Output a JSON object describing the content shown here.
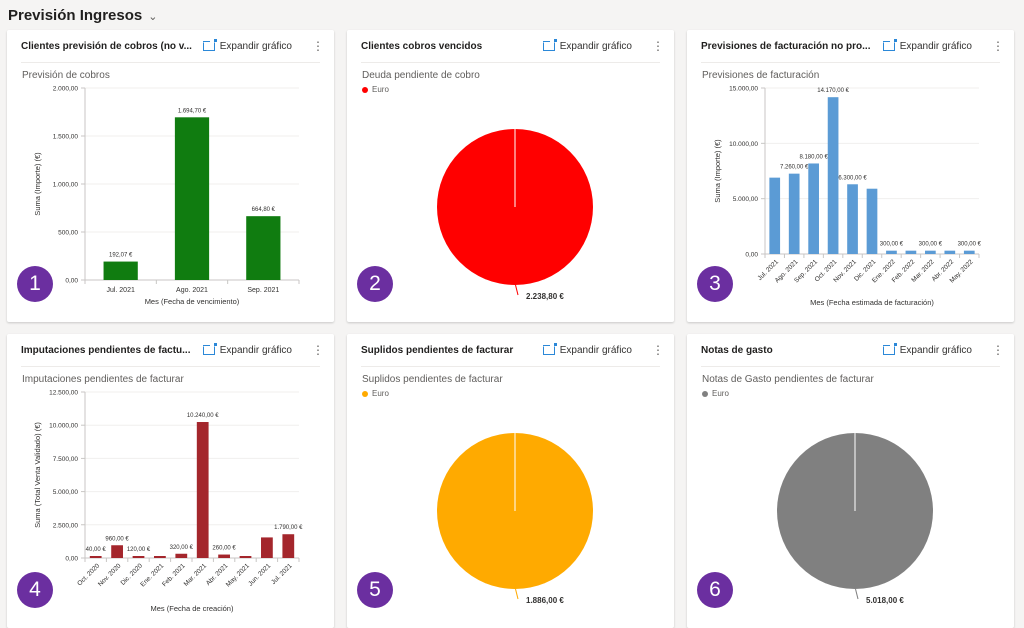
{
  "header": {
    "title": "Previsión Ingresos"
  },
  "expand_label": "Expandir gráfico",
  "cards": [
    {
      "title": "Clientes previsión de cobros (no v...",
      "badge": "1"
    },
    {
      "title": "Clientes cobros vencidos",
      "badge": "2"
    },
    {
      "title": "Previsiones de facturación no pro...",
      "badge": "3"
    },
    {
      "title": "Imputaciones pendientes de factu...",
      "badge": "4"
    },
    {
      "title": "Suplidos pendientes de facturar",
      "badge": "5"
    },
    {
      "title": "Notas de gasto",
      "badge": "6"
    }
  ],
  "chart_data": [
    {
      "type": "bar",
      "title": "Previsión de cobros",
      "xlabel": "Mes (Fecha de vencimiento)",
      "ylabel": "Suma (Importe) (€)",
      "ylim": [
        0,
        2000
      ],
      "yticks": [
        0,
        500,
        1000,
        1500,
        2000
      ],
      "ytick_labels": [
        "0,00",
        "500,00",
        "1.000,00",
        "1.500,00",
        "2.000,00"
      ],
      "categories": [
        "Jul. 2021",
        "Ago. 2021",
        "Sep. 2021"
      ],
      "values": [
        192.07,
        1694.7,
        664.8
      ],
      "data_labels": [
        "192,07 €",
        "1.694,70 €",
        "664,80 €"
      ],
      "color": "#107c10",
      "grid": true,
      "rotate_labels": false
    },
    {
      "type": "pie",
      "title": "Deuda pendiente de cobro",
      "legend": [
        "Euro"
      ],
      "values": [
        2238.8
      ],
      "data_labels": [
        "2.238,80 €"
      ],
      "color": "#ff0000"
    },
    {
      "type": "bar",
      "title": "Previsiones de facturación",
      "xlabel": "Mes (Fecha estimada de facturación)",
      "ylabel": "Suma (Importe) (€)",
      "ylim": [
        0,
        15000
      ],
      "yticks": [
        0,
        5000,
        10000,
        15000
      ],
      "ytick_labels": [
        "0,00",
        "5.000,00",
        "10.000,00",
        "15.000,00"
      ],
      "categories": [
        "Jul. 2021",
        "Ago. 2021",
        "Sep. 2021",
        "Oct. 2021",
        "Nov. 2021",
        "Dic. 2021",
        "Ene. 2022",
        "Feb. 2022",
        "Mar. 2022",
        "Abr. 2022",
        "May. 2022"
      ],
      "values": [
        6900,
        7260,
        8180,
        14170,
        6300,
        5900,
        300,
        300,
        300,
        300,
        300
      ],
      "data_labels": [
        "",
        "7.260,00 €",
        "8.180,00 €",
        "14.170,00 €",
        "6.300,00 €",
        "",
        "300,00 €",
        "",
        "300,00 €",
        "",
        "300,00 €"
      ],
      "color": "#5b9bd5",
      "grid": true,
      "rotate_labels": true
    },
    {
      "type": "bar",
      "title": "Imputaciones pendientes de facturar",
      "xlabel": "Mes (Fecha de creación)",
      "ylabel": "Suma (Total Venta Validado) (€)",
      "ylim": [
        0,
        12500
      ],
      "yticks": [
        0,
        2500,
        5000,
        7500,
        10000,
        12500
      ],
      "ytick_labels": [
        "0,00",
        "2.500,00",
        "5.000,00",
        "7.500,00",
        "10.000,00",
        "12.500,00"
      ],
      "categories": [
        "Oct. 2020",
        "Nov. 2020",
        "Dic. 2020",
        "Ene. 2021",
        "Feb. 2021",
        "Mar. 2021",
        "Abr. 2021",
        "May. 2021",
        "Jun. 2021",
        "Jul. 2021"
      ],
      "values": [
        40,
        960,
        120,
        100,
        320,
        10240,
        260,
        100,
        1550,
        1790
      ],
      "data_labels": [
        "40,00 €",
        "960,00 €",
        "120,00 €",
        "",
        "320,00 €",
        "10.240,00 €",
        "260,00 €",
        "",
        "",
        "1.790,00 €"
      ],
      "color": "#a4262c",
      "grid": true,
      "rotate_labels": true
    },
    {
      "type": "pie",
      "title": "Suplidos pendientes de facturar",
      "legend": [
        "Euro"
      ],
      "values": [
        1886.0
      ],
      "data_labels": [
        "1.886,00 €"
      ],
      "color": "#ffaa00"
    },
    {
      "type": "pie",
      "title": "Notas de Gasto pendientes de facturar",
      "legend": [
        "Euro"
      ],
      "values": [
        5018.0
      ],
      "data_labels": [
        "5.018,00 €"
      ],
      "color": "#808080"
    }
  ]
}
